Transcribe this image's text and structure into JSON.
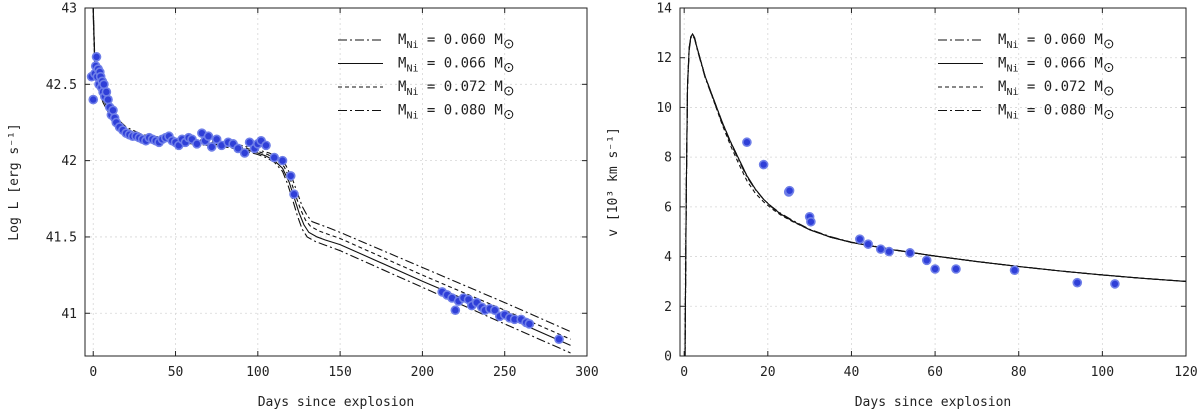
{
  "chart_data": [
    {
      "type": "line",
      "xlabel": "Days since explosion",
      "ylabel": "Log L [erg s⁻¹]",
      "xlim": [
        -5,
        300
      ],
      "ylim": [
        40.72,
        43
      ],
      "xticks": [
        0,
        50,
        100,
        150,
        200,
        250,
        300
      ],
      "yticks": [
        41,
        41.5,
        42,
        42.5,
        43
      ],
      "xtick_labels": [
        "0",
        "50",
        "100",
        "150",
        "200",
        "250",
        "300"
      ],
      "ytick_labels": [
        "41",
        "41.5",
        "42",
        "42.5",
        "43"
      ],
      "legend_position": "top-right",
      "series": [
        {
          "name": "M_Ni = 0.060 M_sun",
          "style": "dashdot",
          "legend": "M",
          "sub": "Ni",
          "eq": " = 0.060 M",
          "x": [
            0,
            1,
            3,
            6,
            10,
            15,
            20,
            30,
            40,
            50,
            60,
            70,
            80,
            90,
            100,
            105,
            110,
            115,
            118,
            121,
            124,
            127,
            130,
            135,
            140,
            150,
            200,
            250,
            290
          ],
          "y": [
            42.95,
            42.6,
            42.48,
            42.38,
            42.3,
            42.24,
            42.19,
            42.14,
            42.125,
            42.12,
            42.11,
            42.1,
            42.09,
            42.07,
            42.04,
            42.02,
            41.99,
            41.93,
            41.85,
            41.75,
            41.64,
            41.55,
            41.5,
            41.47,
            41.45,
            41.41,
            41.17,
            40.93,
            40.74
          ]
        },
        {
          "name": "M_Ni = 0.066 M_sun",
          "style": "solid",
          "legend": "M",
          "sub": "Ni",
          "eq": " = 0.066 M",
          "x": [
            0,
            1,
            3,
            6,
            10,
            15,
            20,
            30,
            40,
            50,
            60,
            70,
            80,
            90,
            100,
            105,
            110,
            115,
            119,
            122,
            125,
            128,
            131,
            136,
            141,
            150,
            200,
            250,
            290
          ],
          "y": [
            43.0,
            42.62,
            42.5,
            42.4,
            42.32,
            42.25,
            42.2,
            42.15,
            42.135,
            42.13,
            42.12,
            42.11,
            42.1,
            42.08,
            42.05,
            42.03,
            42.0,
            41.95,
            41.86,
            41.76,
            41.66,
            41.58,
            41.53,
            41.5,
            41.48,
            41.45,
            41.21,
            40.98,
            40.79
          ]
        },
        {
          "name": "M_Ni = 0.072 M_sun",
          "style": "dashed",
          "legend": "M",
          "sub": "Ni",
          "eq": " = 0.072 M",
          "x": [
            0,
            1,
            3,
            6,
            10,
            15,
            20,
            30,
            40,
            50,
            60,
            70,
            80,
            90,
            100,
            106,
            111,
            116,
            120,
            123,
            126,
            129,
            132,
            137,
            142,
            150,
            200,
            250,
            290
          ],
          "y": [
            43.0,
            42.63,
            42.51,
            42.41,
            42.33,
            42.26,
            42.21,
            42.16,
            42.145,
            42.14,
            42.13,
            42.12,
            42.11,
            42.09,
            42.06,
            42.04,
            42.01,
            41.96,
            41.87,
            41.77,
            41.68,
            41.61,
            41.57,
            41.54,
            41.52,
            41.49,
            41.25,
            41.02,
            40.83
          ]
        },
        {
          "name": "M_Ni = 0.080 M_sun",
          "style": "dashdot",
          "legend": "M",
          "sub": "Ni",
          "eq": " = 0.080 M",
          "x": [
            0,
            1,
            3,
            6,
            10,
            15,
            20,
            30,
            40,
            50,
            60,
            70,
            80,
            90,
            100,
            107,
            112,
            117,
            121,
            124,
            127,
            130,
            133,
            138,
            143,
            150,
            200,
            250,
            290
          ],
          "y": [
            43.0,
            42.65,
            42.52,
            42.42,
            42.34,
            42.27,
            42.22,
            42.17,
            42.155,
            42.15,
            42.14,
            42.13,
            42.12,
            42.1,
            42.07,
            42.05,
            42.02,
            41.97,
            41.88,
            41.79,
            41.7,
            41.64,
            41.6,
            41.58,
            41.56,
            41.53,
            41.3,
            41.07,
            40.88
          ]
        }
      ],
      "points": {
        "x": [
          -1,
          0,
          1,
          1.5,
          2,
          2.5,
          3,
          3.5,
          4,
          4.5,
          5,
          5.5,
          6,
          6.5,
          7,
          8,
          9,
          10,
          11,
          12,
          13,
          14,
          16,
          18,
          20,
          22,
          24,
          26,
          28,
          30,
          32,
          34,
          36,
          38,
          40,
          42,
          44,
          46,
          48,
          50,
          52,
          54,
          56,
          58,
          60,
          63,
          66,
          68,
          70,
          72,
          75,
          78,
          82,
          85,
          88,
          92,
          95,
          98,
          100,
          102,
          105,
          110,
          115,
          120,
          122,
          212,
          215,
          218,
          220,
          222,
          225,
          228,
          230,
          233,
          236,
          238,
          241,
          244,
          247,
          250,
          253,
          256,
          260,
          263,
          265,
          283
        ],
        "y": [
          42.55,
          42.4,
          42.57,
          42.62,
          42.68,
          42.55,
          42.6,
          42.5,
          42.58,
          42.55,
          42.48,
          42.52,
          42.45,
          42.5,
          42.42,
          42.45,
          42.4,
          42.35,
          42.3,
          42.33,
          42.28,
          42.25,
          42.22,
          42.2,
          42.18,
          42.17,
          42.16,
          42.16,
          42.15,
          42.14,
          42.13,
          42.15,
          42.14,
          42.13,
          42.12,
          42.14,
          42.15,
          42.16,
          42.13,
          42.12,
          42.1,
          42.14,
          42.12,
          42.15,
          42.14,
          42.11,
          42.18,
          42.13,
          42.16,
          42.09,
          42.14,
          42.1,
          42.12,
          42.11,
          42.08,
          42.05,
          42.12,
          42.08,
          42.11,
          42.13,
          42.1,
          42.02,
          42.0,
          41.9,
          41.78,
          41.14,
          41.12,
          41.1,
          41.02,
          41.08,
          41.1,
          41.09,
          41.05,
          41.07,
          41.04,
          41.02,
          41.03,
          41.02,
          40.98,
          40.99,
          40.97,
          40.96,
          40.96,
          40.94,
          40.93,
          40.83
        ]
      }
    },
    {
      "type": "line",
      "xlabel": "Days since explosion",
      "ylabel": "v [10³ km s⁻¹]",
      "xlim": [
        -1,
        120
      ],
      "ylim": [
        0,
        14
      ],
      "xticks": [
        0,
        20,
        40,
        60,
        80,
        100,
        120
      ],
      "yticks": [
        0,
        2,
        4,
        6,
        8,
        10,
        12,
        14
      ],
      "xtick_labels": [
        "0",
        "20",
        "40",
        "60",
        "80",
        "100",
        "120"
      ],
      "ytick_labels": [
        "0",
        "2",
        "4",
        "6",
        "8",
        "10",
        "12",
        "14"
      ],
      "legend_position": "top-right",
      "series": [
        {
          "name": "M_Ni = 0.060 M_sun",
          "style": "dashdot",
          "legend": "M",
          "sub": "Ni",
          "eq": " = 0.060 M",
          "x": [
            0.2,
            0.5,
            0.8,
            1.2,
            1.6,
            2,
            2.5,
            3,
            4,
            5,
            7,
            9,
            11,
            13,
            15,
            17,
            19,
            21,
            23,
            26,
            30,
            35,
            40,
            50,
            60,
            70,
            80,
            90,
            100,
            110,
            120
          ],
          "y": [
            0,
            6.5,
            10.8,
            12.3,
            12.8,
            12.9,
            12.75,
            12.4,
            11.8,
            11.2,
            10.3,
            9.4,
            8.6,
            7.9,
            7.2,
            6.7,
            6.3,
            6.0,
            5.75,
            5.45,
            5.1,
            4.8,
            4.58,
            4.28,
            4.02,
            3.8,
            3.6,
            3.42,
            3.26,
            3.12,
            3.0
          ]
        },
        {
          "name": "M_Ni = 0.066 M_sun",
          "style": "solid",
          "legend": "M",
          "sub": "Ni",
          "eq": " = 0.066 M",
          "x": [
            0.2,
            0.5,
            0.8,
            1.2,
            1.6,
            2,
            2.5,
            3,
            4,
            5,
            7,
            9,
            11,
            13,
            15,
            17,
            19,
            21,
            23,
            26,
            30,
            35,
            40,
            50,
            60,
            70,
            80,
            90,
            100,
            110,
            120
          ],
          "y": [
            0,
            6.6,
            10.9,
            12.4,
            12.85,
            12.95,
            12.8,
            12.45,
            11.85,
            11.25,
            10.35,
            9.45,
            8.65,
            7.95,
            7.25,
            6.72,
            6.3,
            5.98,
            5.72,
            5.42,
            5.08,
            4.78,
            4.57,
            4.27,
            4.02,
            3.8,
            3.6,
            3.42,
            3.26,
            3.12,
            3.0
          ]
        },
        {
          "name": "M_Ni = 0.072 M_sun",
          "style": "dashed",
          "legend": "M",
          "sub": "Ni",
          "eq": " = 0.072 M",
          "x": [
            0.2,
            0.5,
            0.8,
            1.2,
            1.6,
            2,
            2.5,
            3,
            4,
            5,
            7,
            9,
            11,
            13,
            15,
            17,
            19,
            21,
            23,
            26,
            30,
            35,
            40,
            50,
            60,
            70,
            80,
            90,
            100,
            110,
            120
          ],
          "y": [
            0,
            6.6,
            10.9,
            12.4,
            12.85,
            12.95,
            12.8,
            12.45,
            11.85,
            11.25,
            10.3,
            9.35,
            8.5,
            7.75,
            7.05,
            6.55,
            6.2,
            5.92,
            5.68,
            5.4,
            5.08,
            4.78,
            4.57,
            4.27,
            4.02,
            3.8,
            3.6,
            3.42,
            3.26,
            3.12,
            3.0
          ]
        },
        {
          "name": "M_Ni = 0.080 M_sun",
          "style": "dashdot",
          "legend": "M",
          "sub": "Ni",
          "eq": " = 0.080 M",
          "x": [
            0.2,
            0.5,
            0.8,
            1.2,
            1.6,
            2,
            2.5,
            3,
            4,
            5,
            7,
            9,
            11,
            13,
            15,
            17,
            19,
            21,
            23,
            26,
            30,
            35,
            40,
            50,
            60,
            70,
            80,
            90,
            100,
            110,
            120
          ],
          "y": [
            0,
            6.6,
            10.9,
            12.4,
            12.85,
            12.95,
            12.8,
            12.45,
            11.85,
            11.25,
            10.35,
            9.45,
            8.65,
            7.95,
            7.25,
            6.72,
            6.3,
            5.98,
            5.72,
            5.42,
            5.08,
            4.78,
            4.57,
            4.27,
            4.02,
            3.8,
            3.6,
            3.42,
            3.26,
            3.12,
            3.0
          ]
        }
      ],
      "points": {
        "x": [
          15,
          19,
          25,
          25.2,
          30,
          30.3,
          42,
          44,
          47,
          49,
          54,
          58,
          60,
          65,
          79,
          94,
          103
        ],
        "y": [
          8.6,
          7.7,
          6.6,
          6.65,
          5.6,
          5.4,
          4.7,
          4.5,
          4.3,
          4.2,
          4.15,
          3.85,
          3.5,
          3.5,
          3.45,
          2.95,
          2.9
        ]
      }
    }
  ]
}
